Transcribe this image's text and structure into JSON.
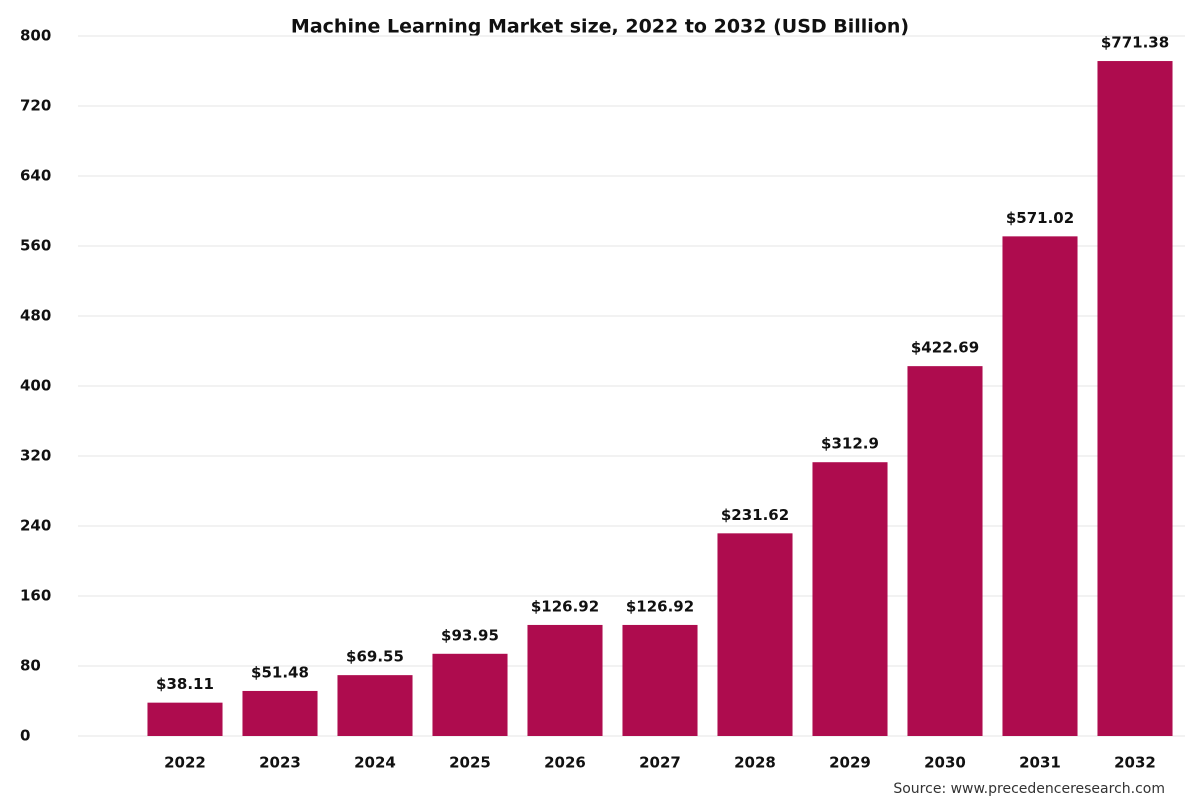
{
  "chart_data": {
    "type": "bar",
    "title": "Machine Learning Market size, 2022 to 2032 (USD Billion)",
    "categories": [
      "2022",
      "2023",
      "2024",
      "2025",
      "2026",
      "2027",
      "2028",
      "2029",
      "2030",
      "2031",
      "2032"
    ],
    "values": [
      38.11,
      51.48,
      69.55,
      93.95,
      126.92,
      126.92,
      231.62,
      312.9,
      422.69,
      571.02,
      771.38
    ],
    "value_labels": [
      "$38.11",
      "$51.48",
      "$69.55",
      "$93.95",
      "$126.92",
      "$126.92",
      "$231.62",
      "$312.9",
      "$422.69",
      "$571.02",
      "$771.38"
    ],
    "color": "#ae0c4e",
    "ylim": [
      0,
      800
    ],
    "yticks": [
      0,
      80,
      160,
      240,
      320,
      400,
      480,
      560,
      640,
      720,
      800
    ],
    "grid": true,
    "source": "Source: www.precedenceresearch.com"
  }
}
